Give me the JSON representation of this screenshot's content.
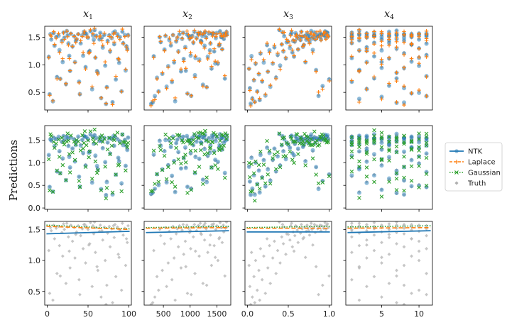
{
  "chart_data": {
    "type": "scatter",
    "ylabel": "Predictions",
    "columns": [
      {
        "title": "x",
        "subscript": "1",
        "xlim": [
          -3,
          103
        ],
        "xticks": [
          0,
          50,
          100
        ],
        "xtick_labels": [
          "0",
          "50",
          "100"
        ]
      },
      {
        "title": "x",
        "subscript": "2",
        "xlim": [
          140,
          1760
        ],
        "xticks": [
          500,
          1000,
          1500
        ],
        "xtick_labels": [
          "500",
          "1000",
          "1500"
        ]
      },
      {
        "title": "x",
        "subscript": "3",
        "xlim": [
          -0.03,
          1.03
        ],
        "xticks": [
          0.0,
          0.5,
          1.0
        ],
        "xtick_labels": [
          "0.0",
          "0.5",
          "1.0"
        ]
      },
      {
        "title": "x",
        "subscript": "4",
        "xlim": [
          0.2,
          11.8
        ],
        "xticks": [
          5,
          10
        ],
        "xtick_labels": [
          "5",
          "10"
        ]
      }
    ],
    "rows": [
      {
        "ylim": [
          0.18,
          1.7
        ],
        "yticks": [
          0.5,
          1.0,
          1.5
        ],
        "ytick_labels": [
          "0.5",
          "1.0",
          "1.5"
        ],
        "series": [
          "Truth",
          "NTK",
          "Laplace"
        ]
      },
      {
        "ylim": [
          -0.03,
          1.82
        ],
        "yticks": [
          0.0,
          0.5,
          1.0,
          1.5
        ],
        "ytick_labels": [
          "0.0",
          "0.5",
          "1.0",
          "1.5"
        ],
        "series": [
          "Truth",
          "NTK",
          "Gaussian"
        ]
      },
      {
        "ylim": [
          0.28,
          1.63
        ],
        "yticks": [
          0.5,
          1.0,
          1.5
        ],
        "ytick_labels": [
          "0.5",
          "1.0",
          "1.5"
        ],
        "series": [
          "Truth",
          "NTK",
          "Laplace",
          "Gaussian"
        ]
      }
    ],
    "bottom_row_lines": {
      "NTK": [
        [
          1.43,
          1.47
        ],
        [
          1.45,
          1.48
        ],
        [
          1.46,
          1.46
        ],
        [
          1.45,
          1.48
        ]
      ],
      "Laplace": [
        [
          1.55,
          1.5
        ],
        [
          1.52,
          1.53
        ],
        [
          1.52,
          1.52
        ],
        [
          1.52,
          1.53
        ]
      ],
      "Gaussian": [
        [
          1.57,
          1.51
        ],
        [
          1.53,
          1.55
        ],
        [
          1.53,
          1.55
        ],
        [
          1.54,
          1.56
        ]
      ]
    },
    "legend": {
      "position": "right",
      "entries": [
        {
          "label": "NTK",
          "style": "solid-line",
          "color": "#1f77b4"
        },
        {
          "label": "Laplace",
          "style": "dashed-line-plus",
          "color": "#ff7f0e"
        },
        {
          "label": "Gaussian",
          "style": "dotted-line-x",
          "color": "#2ca02c"
        },
        {
          "label": "Truth",
          "style": "diamond",
          "color": "#b0b0b0"
        }
      ]
    },
    "truth_targets": [
      0.29,
      0.32,
      0.36,
      0.41,
      0.47,
      0.52,
      0.58,
      0.63,
      0.69,
      0.74,
      0.79,
      0.84,
      0.88,
      0.92,
      0.96,
      1.0,
      1.04,
      1.07,
      1.1,
      1.13,
      1.16,
      1.19,
      1.22,
      1.24,
      1.27,
      1.29,
      1.31,
      1.33,
      1.35,
      1.37,
      1.38,
      1.4,
      1.41,
      1.43,
      1.44,
      1.45,
      1.46,
      1.47,
      1.48,
      1.49,
      1.5,
      1.5,
      1.51,
      1.51,
      1.52,
      1.52,
      1.53,
      1.53,
      1.54,
      1.54,
      1.54,
      1.55,
      1.55,
      1.55,
      1.56,
      1.56,
      1.56,
      1.57,
      1.57,
      1.57,
      1.58,
      1.58,
      1.59,
      1.6,
      1.61,
      0.45,
      0.6,
      0.75,
      0.9,
      1.05,
      1.15,
      1.25,
      1.35,
      1.42,
      1.48,
      1.53,
      1.56,
      1.58,
      1.6,
      1.62
    ],
    "feature_x": {
      "x1": [
        72,
        80,
        7,
        66,
        3,
        91,
        55,
        23,
        39,
        84,
        12,
        62,
        28,
        96,
        47,
        71,
        34,
        19,
        87,
        59,
        2,
        44,
        77,
        15,
        52,
        98,
        31,
        68,
        9,
        82,
        26,
        41,
        93,
        57,
        74,
        18,
        36,
        64,
        5,
        89,
        50,
        21,
        79,
        43,
        11,
        95,
        60,
        33,
        70,
        25,
        86,
        48,
        14,
        76,
        38,
        99,
        56,
        29,
        65,
        8,
        83,
        46,
        20,
        92,
        53,
        40,
        73,
        16,
        61,
        88,
        27,
        51,
        97,
        35,
        67,
        4,
        81,
        45,
        24,
        58
      ],
      "x2": [
        270,
        300,
        720,
        340,
        950,
        410,
        560,
        1240,
        660,
        380,
        1090,
        480,
        830,
        1400,
        590,
        1520,
        700,
        1170,
        880,
        1330,
        320,
        1010,
        780,
        1450,
        520,
        1600,
        910,
        1270,
        640,
        1550,
        1060,
        450,
        1380,
        740,
        1200,
        990,
        1630,
        610,
        1120,
        850,
        1480,
        430,
        1300,
        760,
        1660,
        970,
        1580,
        540,
        1230,
        1690,
        1040,
        1420,
        680,
        1350,
        1150,
        800,
        1500,
        940,
        1260,
        1620,
        1080,
        870,
        1440,
        1190,
        1560,
        1020,
        1310,
        1650,
        920,
        1470,
        1100,
        1370,
        1540,
        1210,
        1000,
        1590,
        1160,
        1410,
        1280,
        1680
      ],
      "x3": [
        0.04,
        0.09,
        0.15,
        0.06,
        0.22,
        0.12,
        0.03,
        0.28,
        0.18,
        0.08,
        0.35,
        0.14,
        0.25,
        0.02,
        0.4,
        0.1,
        0.31,
        0.2,
        0.47,
        0.05,
        0.37,
        0.16,
        0.55,
        0.27,
        0.44,
        0.62,
        0.33,
        0.52,
        0.24,
        0.69,
        0.42,
        0.58,
        0.76,
        0.48,
        0.65,
        0.83,
        0.56,
        0.72,
        0.9,
        0.61,
        0.79,
        0.96,
        0.67,
        0.86,
        0.74,
        0.93,
        0.81,
        0.99,
        0.88,
        0.45,
        0.7,
        0.94,
        0.77,
        0.6,
        0.85,
        0.91,
        0.53,
        0.97,
        0.73,
        0.89,
        0.66,
        0.82,
        0.98,
        0.78,
        0.95,
        0.87,
        0.92,
        1.0,
        0.84,
        0.71,
        0.57,
        0.8,
        0.68,
        0.5,
        0.75,
        0.64,
        0.59,
        0.43,
        0.54,
        0.39
      ],
      "x4": [
        8,
        7,
        2,
        5,
        9,
        10,
        3,
        6,
        1,
        4,
        11,
        7,
        2,
        8,
        5,
        10,
        3,
        9,
        6,
        1,
        4,
        11,
        8,
        2,
        7,
        5,
        10,
        3,
        9,
        6,
        1,
        11,
        4,
        8,
        2,
        7,
        5,
        10,
        3,
        9,
        6,
        1,
        4,
        11,
        8,
        7,
        2,
        5,
        10,
        3,
        9,
        6,
        1,
        4,
        11,
        8,
        2,
        7,
        5,
        10,
        3,
        9,
        6,
        1,
        4,
        11,
        8,
        7,
        2,
        5,
        10,
        3,
        9,
        6,
        1,
        4,
        11,
        8,
        2,
        7
      ]
    }
  }
}
